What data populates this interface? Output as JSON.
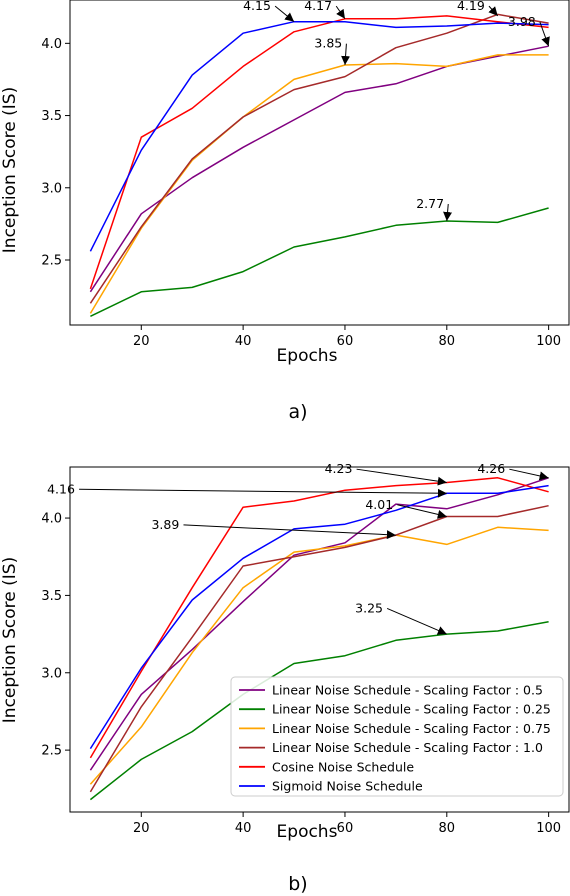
{
  "chart_data": [
    {
      "caption": "a)",
      "type": "line",
      "xlabel": "Epochs",
      "ylabel": "Inception Score (IS)",
      "xlim": [
        6,
        104
      ],
      "ylim": [
        2.05,
        4.3
      ],
      "xticks": [
        20,
        40,
        60,
        80,
        100
      ],
      "yticks": [
        2.5,
        3.0,
        3.5,
        4.0
      ],
      "x": [
        10,
        20,
        30,
        40,
        50,
        60,
        70,
        80,
        90,
        100
      ],
      "series": [
        {
          "color": "#800080",
          "values": [
            2.28,
            2.82,
            3.07,
            3.28,
            3.47,
            3.66,
            3.72,
            3.84,
            3.91,
            3.98
          ]
        },
        {
          "color": "#008000",
          "values": [
            2.11,
            2.28,
            2.31,
            2.42,
            2.59,
            2.66,
            2.74,
            2.77,
            2.76,
            2.86
          ]
        },
        {
          "color": "#FFA500",
          "values": [
            2.13,
            2.72,
            3.19,
            3.49,
            3.75,
            3.85,
            3.86,
            3.84,
            3.92,
            3.92
          ]
        },
        {
          "color": "#A52A2A",
          "values": [
            2.2,
            2.73,
            3.2,
            3.49,
            3.68,
            3.77,
            3.97,
            4.07,
            4.2,
            4.14
          ]
        },
        {
          "color": "#FF0000",
          "values": [
            2.3,
            3.35,
            3.55,
            3.84,
            4.08,
            4.17,
            4.17,
            4.19,
            4.15,
            4.11
          ]
        },
        {
          "color": "#0000FF",
          "values": [
            2.56,
            3.26,
            3.78,
            4.07,
            4.15,
            4.15,
            4.11,
            4.12,
            4.14,
            4.13
          ]
        }
      ],
      "annotations": [
        {
          "text": "4.15",
          "x": 50,
          "y": 4.15,
          "tx": 40,
          "ty": 4.23
        },
        {
          "text": "4.17",
          "x": 60,
          "y": 4.17,
          "tx": 52,
          "ty": 4.23
        },
        {
          "text": "4.19",
          "x": 90,
          "y": 4.19,
          "tx": 82,
          "ty": 4.23
        },
        {
          "text": "3.98",
          "x": 100,
          "y": 3.98,
          "tx": 92,
          "ty": 4.12
        },
        {
          "text": "3.85",
          "x": 60,
          "y": 3.85,
          "tx": 54,
          "ty": 3.97
        },
        {
          "text": "2.77",
          "x": 80,
          "y": 2.77,
          "tx": 74,
          "ty": 2.86
        }
      ]
    },
    {
      "caption": "b)",
      "type": "line",
      "xlabel": "Epochs",
      "ylabel": "Inception Score (IS)",
      "xlim": [
        6,
        104
      ],
      "ylim": [
        2.1,
        4.33
      ],
      "xticks": [
        20,
        40,
        60,
        80,
        100
      ],
      "yticks": [
        2.5,
        3.0,
        3.5,
        4.0
      ],
      "x": [
        10,
        20,
        30,
        40,
        50,
        60,
        70,
        80,
        90,
        100
      ],
      "series": [
        {
          "name": "Linear Noise Schedule - Scaling Factor : 0.5",
          "color": "#800080",
          "values": [
            2.37,
            2.86,
            3.15,
            3.46,
            3.76,
            3.84,
            4.09,
            4.06,
            4.15,
            4.26
          ]
        },
        {
          "name": "Linear Noise Schedule - Scaling Factor : 0.25",
          "color": "#008000",
          "values": [
            2.18,
            2.44,
            2.62,
            2.86,
            3.06,
            3.11,
            3.21,
            3.25,
            3.27,
            3.33
          ]
        },
        {
          "name": "Linear Noise Schedule - Scaling Factor : 0.75",
          "color": "#FFA500",
          "values": [
            2.28,
            2.65,
            3.13,
            3.55,
            3.78,
            3.82,
            3.89,
            3.83,
            3.94,
            3.92
          ]
        },
        {
          "name": "Linear Noise Schedule - Scaling Factor : 1.0",
          "color": "#A52A2A",
          "values": [
            2.23,
            2.78,
            3.23,
            3.69,
            3.75,
            3.81,
            3.89,
            4.01,
            4.01,
            4.08
          ]
        },
        {
          "name": "Cosine Noise Schedule",
          "color": "#FF0000",
          "values": [
            2.45,
            3.01,
            3.55,
            4.07,
            4.11,
            4.18,
            4.21,
            4.23,
            4.26,
            4.17
          ]
        },
        {
          "name": "Sigmoid Noise Schedule",
          "color": "#0000FF",
          "values": [
            2.51,
            3.03,
            3.47,
            3.74,
            3.93,
            3.96,
            4.05,
            4.16,
            4.16,
            4.21
          ]
        }
      ],
      "legend_position": "lower-right",
      "annotations": [
        {
          "text": "4.16",
          "x": 80,
          "y": 4.16,
          "tx": 1.5,
          "ty": 4.16
        },
        {
          "text": "4.23",
          "x": 80,
          "y": 4.23,
          "tx": 56,
          "ty": 4.29
        },
        {
          "text": "4.26",
          "x": 100,
          "y": 4.26,
          "tx": 86,
          "ty": 4.29
        },
        {
          "text": "4.01",
          "x": 80,
          "y": 4.01,
          "tx": 64,
          "ty": 4.06
        },
        {
          "text": "3.89",
          "x": 70,
          "y": 3.89,
          "tx": 22,
          "ty": 3.93
        },
        {
          "text": "3.25",
          "x": 80,
          "y": 3.25,
          "tx": 62,
          "ty": 3.39
        }
      ]
    }
  ]
}
